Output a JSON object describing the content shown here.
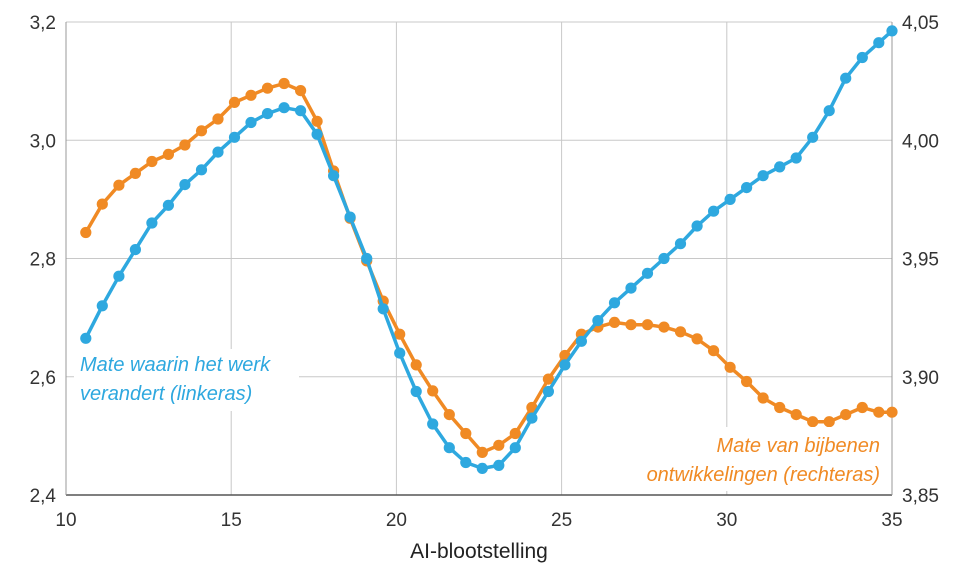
{
  "chart_data": {
    "type": "line",
    "title": "",
    "xlabel": "AI-blootstelling",
    "xlim": [
      10,
      35
    ],
    "x_ticks": [
      10,
      15,
      20,
      25,
      30,
      35
    ],
    "x_tick_labels": [
      "10",
      "15",
      "20",
      "25",
      "30",
      "35"
    ],
    "y_left": {
      "lim": [
        2.4,
        3.2
      ],
      "ticks": [
        2.4,
        2.6,
        2.8,
        3.0,
        3.2
      ],
      "tick_labels": [
        "2,4",
        "2,6",
        "2,8",
        "3,0",
        "3,2"
      ]
    },
    "y_right": {
      "lim": [
        3.85,
        4.05
      ],
      "ticks": [
        3.85,
        3.9,
        3.95,
        4.0,
        4.05
      ],
      "tick_labels": [
        "3,85",
        "3,90",
        "3,95",
        "4,00",
        "4,05"
      ]
    },
    "grid": true,
    "series": [
      {
        "name": "Mate waarin het werk verandert (linkeras)",
        "axis": "left",
        "color": "#2ea8df",
        "x": [
          10.6,
          11.1,
          11.6,
          12.1,
          12.6,
          13.1,
          13.6,
          14.1,
          14.6,
          15.1,
          15.6,
          16.1,
          16.6,
          17.1,
          17.6,
          18.1,
          18.6,
          19.1,
          19.6,
          20.1,
          20.6,
          21.1,
          21.6,
          22.1,
          22.6,
          23.1,
          23.6,
          24.1,
          24.6,
          25.1,
          25.6,
          26.1,
          26.6,
          27.1,
          27.6,
          28.1,
          28.6,
          29.1,
          29.6,
          30.1,
          30.6,
          31.1,
          31.6,
          32.1,
          32.6,
          33.1,
          33.6,
          34.1,
          34.6,
          35.0
        ],
        "y": [
          2.665,
          2.72,
          2.77,
          2.815,
          2.86,
          2.89,
          2.925,
          2.95,
          2.98,
          3.005,
          3.03,
          3.045,
          3.055,
          3.05,
          3.01,
          2.94,
          2.87,
          2.8,
          2.715,
          2.64,
          2.575,
          2.52,
          2.48,
          2.455,
          2.445,
          2.45,
          2.48,
          2.53,
          2.575,
          2.62,
          2.66,
          2.695,
          2.725,
          2.75,
          2.775,
          2.8,
          2.825,
          2.855,
          2.88,
          2.9,
          2.92,
          2.94,
          2.955,
          2.97,
          3.005,
          3.05,
          3.105,
          3.14,
          3.165,
          3.185
        ]
      },
      {
        "name": "Mate van bijbenen ontwikkelingen (rechteras)",
        "axis": "right",
        "color": "#f08a24",
        "x": [
          10.6,
          11.1,
          11.6,
          12.1,
          12.6,
          13.1,
          13.6,
          14.1,
          14.6,
          15.1,
          15.6,
          16.1,
          16.6,
          17.1,
          17.6,
          18.1,
          18.6,
          19.1,
          19.6,
          20.1,
          20.6,
          21.1,
          21.6,
          22.1,
          22.6,
          23.1,
          23.6,
          24.1,
          24.6,
          25.1,
          25.6,
          26.1,
          26.6,
          27.1,
          27.6,
          28.1,
          28.6,
          29.1,
          29.6,
          30.1,
          30.6,
          31.1,
          31.6,
          32.1,
          32.6,
          33.1,
          33.6,
          34.1,
          34.6,
          35.0
        ],
        "y": [
          3.961,
          3.973,
          3.981,
          3.986,
          3.991,
          3.994,
          3.998,
          4.004,
          4.009,
          4.016,
          4.019,
          4.022,
          4.024,
          4.021,
          4.008,
          3.987,
          3.967,
          3.949,
          3.932,
          3.918,
          3.905,
          3.894,
          3.884,
          3.876,
          3.868,
          3.871,
          3.876,
          3.887,
          3.899,
          3.909,
          3.918,
          3.921,
          3.923,
          3.922,
          3.922,
          3.921,
          3.919,
          3.916,
          3.911,
          3.904,
          3.898,
          3.891,
          3.887,
          3.884,
          3.881,
          3.881,
          3.884,
          3.887,
          3.885,
          3.885
        ]
      }
    ],
    "annotations": [
      {
        "series": 0,
        "lines": [
          "Mate waarin het werk",
          "verandert (linkeras)"
        ]
      },
      {
        "series": 1,
        "lines": [
          "Mate van bijbenen",
          "ontwikkelingen (rechteras)"
        ]
      }
    ]
  }
}
